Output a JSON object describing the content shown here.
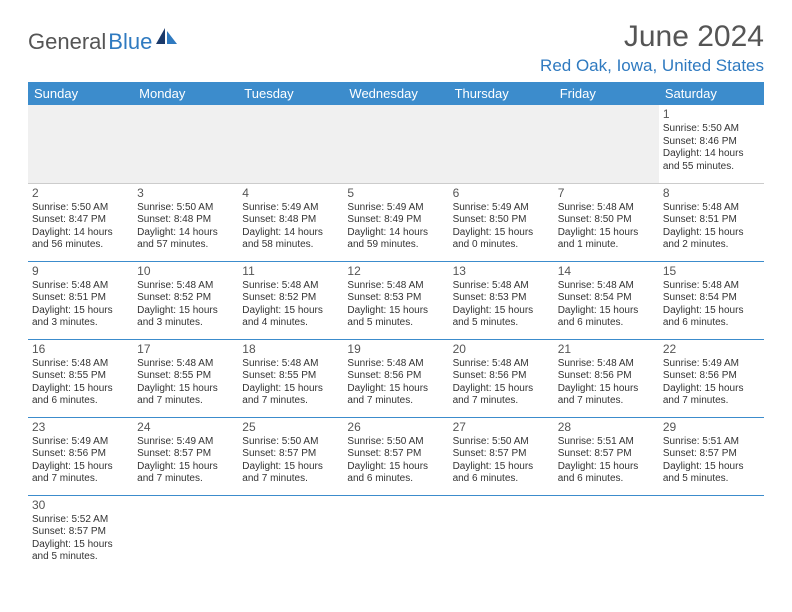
{
  "logo": {
    "text1": "General",
    "text2": "Blue"
  },
  "title": "June 2024",
  "location": "Red Oak, Iowa, United States",
  "colors": {
    "header_bg": "#3c8ccc",
    "header_text": "#ffffff",
    "accent": "#2f7ac0",
    "title_text": "#555555",
    "body_text": "#333333",
    "empty_bg": "#f0f0f0",
    "row_border": "#3c8ccc"
  },
  "weekdays": [
    "Sunday",
    "Monday",
    "Tuesday",
    "Wednesday",
    "Thursday",
    "Friday",
    "Saturday"
  ],
  "weeks": [
    [
      null,
      null,
      null,
      null,
      null,
      null,
      {
        "n": "1",
        "sr": "Sunrise: 5:50 AM",
        "ss": "Sunset: 8:46 PM",
        "dl": "Daylight: 14 hours and 55 minutes."
      }
    ],
    [
      {
        "n": "2",
        "sr": "Sunrise: 5:50 AM",
        "ss": "Sunset: 8:47 PM",
        "dl": "Daylight: 14 hours and 56 minutes."
      },
      {
        "n": "3",
        "sr": "Sunrise: 5:50 AM",
        "ss": "Sunset: 8:48 PM",
        "dl": "Daylight: 14 hours and 57 minutes."
      },
      {
        "n": "4",
        "sr": "Sunrise: 5:49 AM",
        "ss": "Sunset: 8:48 PM",
        "dl": "Daylight: 14 hours and 58 minutes."
      },
      {
        "n": "5",
        "sr": "Sunrise: 5:49 AM",
        "ss": "Sunset: 8:49 PM",
        "dl": "Daylight: 14 hours and 59 minutes."
      },
      {
        "n": "6",
        "sr": "Sunrise: 5:49 AM",
        "ss": "Sunset: 8:50 PM",
        "dl": "Daylight: 15 hours and 0 minutes."
      },
      {
        "n": "7",
        "sr": "Sunrise: 5:48 AM",
        "ss": "Sunset: 8:50 PM",
        "dl": "Daylight: 15 hours and 1 minute."
      },
      {
        "n": "8",
        "sr": "Sunrise: 5:48 AM",
        "ss": "Sunset: 8:51 PM",
        "dl": "Daylight: 15 hours and 2 minutes."
      }
    ],
    [
      {
        "n": "9",
        "sr": "Sunrise: 5:48 AM",
        "ss": "Sunset: 8:51 PM",
        "dl": "Daylight: 15 hours and 3 minutes."
      },
      {
        "n": "10",
        "sr": "Sunrise: 5:48 AM",
        "ss": "Sunset: 8:52 PM",
        "dl": "Daylight: 15 hours and 3 minutes."
      },
      {
        "n": "11",
        "sr": "Sunrise: 5:48 AM",
        "ss": "Sunset: 8:52 PM",
        "dl": "Daylight: 15 hours and 4 minutes."
      },
      {
        "n": "12",
        "sr": "Sunrise: 5:48 AM",
        "ss": "Sunset: 8:53 PM",
        "dl": "Daylight: 15 hours and 5 minutes."
      },
      {
        "n": "13",
        "sr": "Sunrise: 5:48 AM",
        "ss": "Sunset: 8:53 PM",
        "dl": "Daylight: 15 hours and 5 minutes."
      },
      {
        "n": "14",
        "sr": "Sunrise: 5:48 AM",
        "ss": "Sunset: 8:54 PM",
        "dl": "Daylight: 15 hours and 6 minutes."
      },
      {
        "n": "15",
        "sr": "Sunrise: 5:48 AM",
        "ss": "Sunset: 8:54 PM",
        "dl": "Daylight: 15 hours and 6 minutes."
      }
    ],
    [
      {
        "n": "16",
        "sr": "Sunrise: 5:48 AM",
        "ss": "Sunset: 8:55 PM",
        "dl": "Daylight: 15 hours and 6 minutes."
      },
      {
        "n": "17",
        "sr": "Sunrise: 5:48 AM",
        "ss": "Sunset: 8:55 PM",
        "dl": "Daylight: 15 hours and 7 minutes."
      },
      {
        "n": "18",
        "sr": "Sunrise: 5:48 AM",
        "ss": "Sunset: 8:55 PM",
        "dl": "Daylight: 15 hours and 7 minutes."
      },
      {
        "n": "19",
        "sr": "Sunrise: 5:48 AM",
        "ss": "Sunset: 8:56 PM",
        "dl": "Daylight: 15 hours and 7 minutes."
      },
      {
        "n": "20",
        "sr": "Sunrise: 5:48 AM",
        "ss": "Sunset: 8:56 PM",
        "dl": "Daylight: 15 hours and 7 minutes."
      },
      {
        "n": "21",
        "sr": "Sunrise: 5:48 AM",
        "ss": "Sunset: 8:56 PM",
        "dl": "Daylight: 15 hours and 7 minutes."
      },
      {
        "n": "22",
        "sr": "Sunrise: 5:49 AM",
        "ss": "Sunset: 8:56 PM",
        "dl": "Daylight: 15 hours and 7 minutes."
      }
    ],
    [
      {
        "n": "23",
        "sr": "Sunrise: 5:49 AM",
        "ss": "Sunset: 8:56 PM",
        "dl": "Daylight: 15 hours and 7 minutes."
      },
      {
        "n": "24",
        "sr": "Sunrise: 5:49 AM",
        "ss": "Sunset: 8:57 PM",
        "dl": "Daylight: 15 hours and 7 minutes."
      },
      {
        "n": "25",
        "sr": "Sunrise: 5:50 AM",
        "ss": "Sunset: 8:57 PM",
        "dl": "Daylight: 15 hours and 7 minutes."
      },
      {
        "n": "26",
        "sr": "Sunrise: 5:50 AM",
        "ss": "Sunset: 8:57 PM",
        "dl": "Daylight: 15 hours and 6 minutes."
      },
      {
        "n": "27",
        "sr": "Sunrise: 5:50 AM",
        "ss": "Sunset: 8:57 PM",
        "dl": "Daylight: 15 hours and 6 minutes."
      },
      {
        "n": "28",
        "sr": "Sunrise: 5:51 AM",
        "ss": "Sunset: 8:57 PM",
        "dl": "Daylight: 15 hours and 6 minutes."
      },
      {
        "n": "29",
        "sr": "Sunrise: 5:51 AM",
        "ss": "Sunset: 8:57 PM",
        "dl": "Daylight: 15 hours and 5 minutes."
      }
    ],
    [
      {
        "n": "30",
        "sr": "Sunrise: 5:52 AM",
        "ss": "Sunset: 8:57 PM",
        "dl": "Daylight: 15 hours and 5 minutes."
      },
      null,
      null,
      null,
      null,
      null,
      null
    ]
  ]
}
